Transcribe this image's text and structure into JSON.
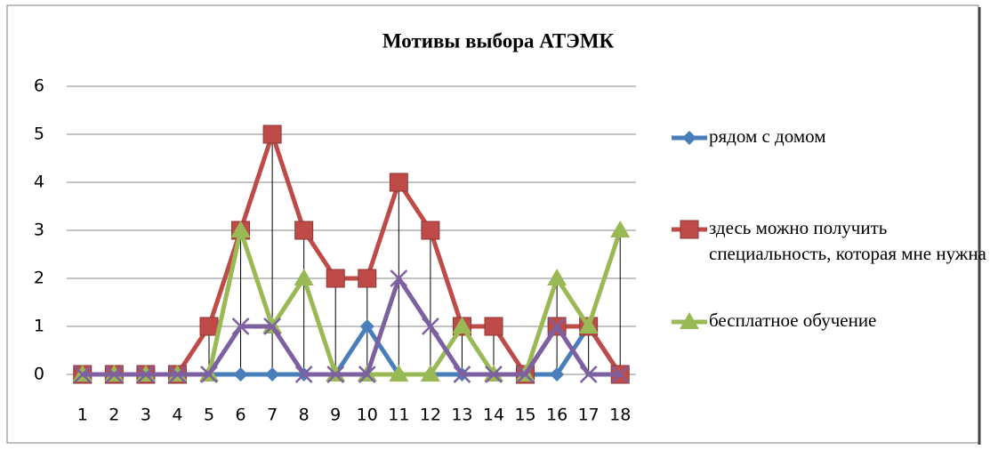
{
  "chart_data": {
    "type": "line",
    "title": "Мотивы выбора АТЭМК",
    "categories": [
      "1",
      "2",
      "3",
      "4",
      "5",
      "6",
      "7",
      "8",
      "9",
      "10",
      "11",
      "12",
      "13",
      "14",
      "15",
      "16",
      "17",
      "18"
    ],
    "series": [
      {
        "name": "рядом с домом",
        "color": "#4a7ebb",
        "marker": "diamond",
        "values": [
          0,
          0,
          0,
          0,
          0,
          0,
          0,
          0,
          0,
          1,
          0,
          0,
          0,
          0,
          0,
          0,
          1,
          0
        ]
      },
      {
        "name": "здесь можно получить специальность, которая мне нужна",
        "color": "#be4b48",
        "marker": "square",
        "values": [
          0,
          0,
          0,
          0,
          1,
          3,
          5,
          3,
          2,
          2,
          4,
          3,
          1,
          1,
          0,
          1,
          1,
          0
        ]
      },
      {
        "name": "бесплатное обучение",
        "color": "#98b954",
        "marker": "triangle",
        "values": [
          0,
          0,
          0,
          0,
          0,
          3,
          1,
          2,
          0,
          0,
          0,
          0,
          1,
          0,
          0,
          2,
          1,
          3
        ]
      },
      {
        "color": "#7d60a0",
        "marker": "x",
        "values": [
          0,
          0,
          0,
          0,
          0,
          1,
          1,
          0,
          0,
          0,
          2,
          1,
          0,
          0,
          0,
          1,
          0,
          0
        ]
      }
    ],
    "ylim": [
      0,
      6
    ],
    "yticks": [
      0,
      1,
      2,
      3,
      4,
      5,
      6
    ],
    "grid": true,
    "drop_lines": true,
    "legend": "right"
  }
}
